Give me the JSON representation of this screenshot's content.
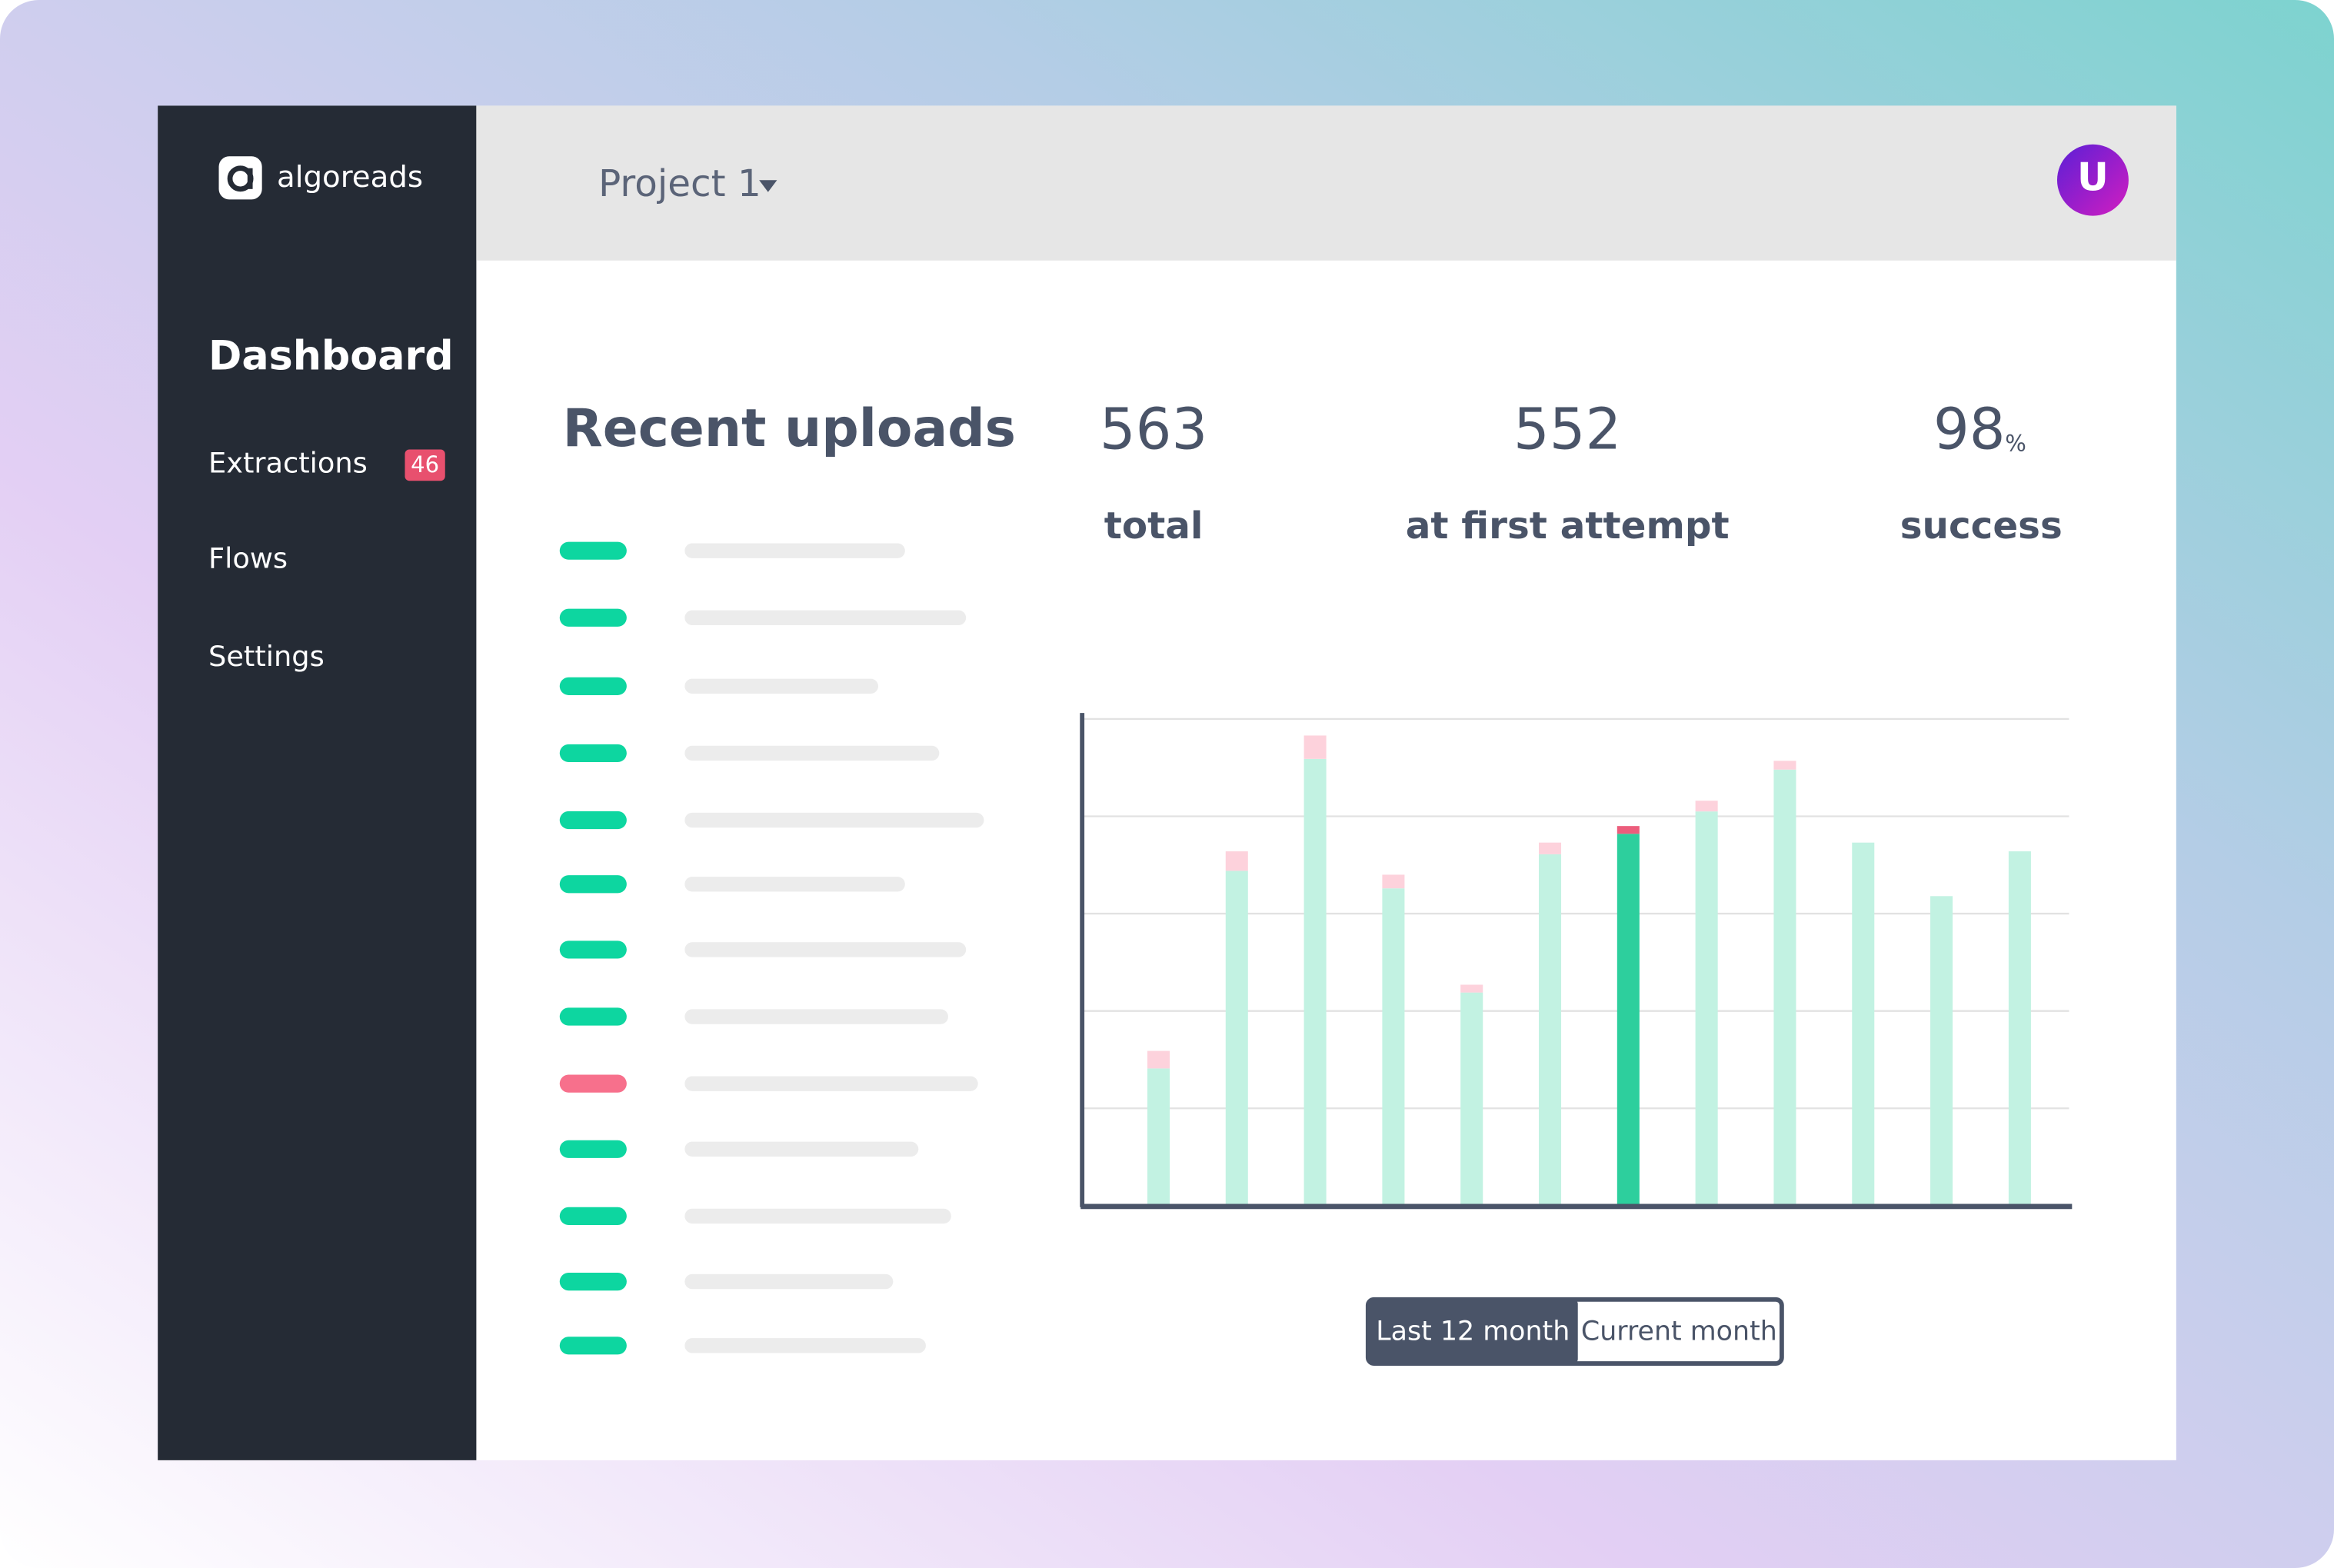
{
  "logo": "algoreads",
  "project": "Project 1",
  "avatar": "U",
  "nav": [
    {
      "label": "Dashboard"
    },
    {
      "label": "Extractions",
      "badge": "46"
    },
    {
      "label": "Flows"
    },
    {
      "label": "Settings"
    }
  ],
  "section_title": "Recent uploads",
  "stats": [
    {
      "value": "563",
      "label": "total"
    },
    {
      "value": "552",
      "label": "at first attempt"
    },
    {
      "value": "98",
      "unit": "%",
      "label": "success"
    }
  ],
  "chart_data": {
    "type": "bar",
    "stacked": true,
    "ylim": [
      0,
      5
    ],
    "yticks": [
      1,
      2,
      3,
      4,
      5
    ],
    "grid": true,
    "highlight_index": 6,
    "series": [
      {
        "color": "#c2f2e2",
        "highlight_color": "#2dcf9d",
        "values": [
          1.41,
          3.44,
          4.59,
          3.26,
          2.19,
          3.61,
          3.82,
          4.05,
          4.48,
          3.73,
          3.18,
          3.64
        ]
      },
      {
        "color": "#fdd2dc",
        "highlight_color": "#ec5d7c",
        "values": [
          0.18,
          0.2,
          0.24,
          0.14,
          0.08,
          0.12,
          0.08,
          0.11,
          0.09,
          0,
          0,
          0
        ]
      }
    ]
  },
  "buttons": [
    "Last 12 month",
    "Current month"
  ]
}
